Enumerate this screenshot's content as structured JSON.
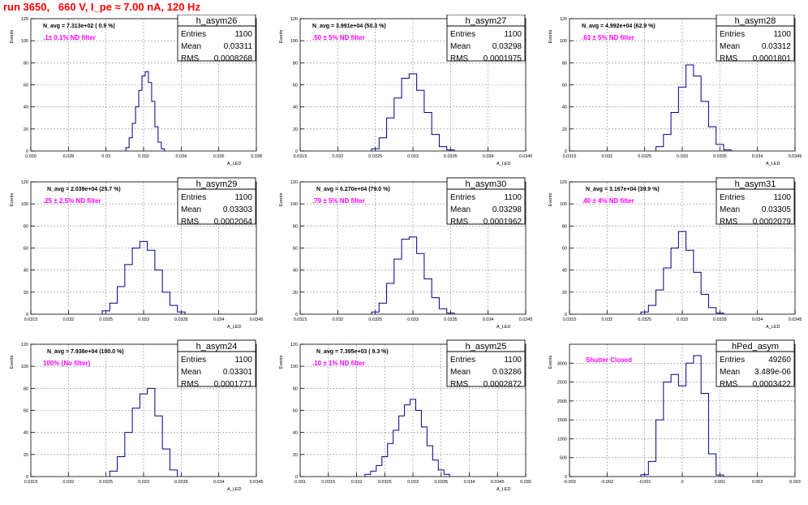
{
  "title": "run 3650,   660 V, I_pe ≈ 7.00 nA, 120 Hz",
  "stat_labels": {
    "entries": "Entries",
    "mean": "Mean",
    "rms": "RMS"
  },
  "colors": {
    "histogram": "#000080",
    "label": "#ff00ff",
    "title": "#ff0000"
  },
  "chart_data": [
    {
      "type": "histogram",
      "name": "h_asym26",
      "entries": "1100",
      "mean": "0.03311",
      "rms": "0.0008268",
      "navg": "N_avg = 7.313e+02 ( 0.9 %)",
      "filter": ".1± 0.1% ND filter",
      "ylabel": "Events",
      "xlabel": "A_LED",
      "xlim": [
        0.026,
        0.04
      ],
      "ylim": [
        0,
        120
      ],
      "xticks": [
        "0.026",
        "0.028",
        "0.03",
        "0.032",
        "0.034",
        "0.036",
        "0.038"
      ],
      "yticks": [
        "0",
        "20",
        "40",
        "60",
        "80",
        "100",
        "120"
      ],
      "x": [
        0.032,
        0.0322,
        0.0324,
        0.0326,
        0.0328,
        0.033,
        0.0332,
        0.0334,
        0.0336,
        0.0338,
        0.034,
        0.0342
      ],
      "values": [
        3,
        12,
        25,
        40,
        55,
        68,
        72,
        62,
        45,
        22,
        8,
        2
      ]
    },
    {
      "type": "histogram",
      "name": "h_asym27",
      "entries": "1100",
      "mean": "0.03298",
      "rms": "0.0001975",
      "navg": "N_avg = 3.991e+04 (50.3 %)",
      "filter": ".50 ± 5% ND filter",
      "ylabel": "Events",
      "xlabel": "A_LED",
      "xlim": [
        0.0315,
        0.0345
      ],
      "ylim": [
        0,
        120
      ],
      "xticks": [
        "0.0315",
        "0.032",
        "0.0325",
        "0.033",
        "0.0335",
        "0.034",
        "0.0345"
      ],
      "yticks": [
        "0",
        "20",
        "40",
        "60",
        "80",
        "100",
        "120"
      ],
      "x": [
        0.0325,
        0.0326,
        0.0327,
        0.0328,
        0.0329,
        0.033,
        0.0331,
        0.0332,
        0.0333,
        0.0334,
        0.0335
      ],
      "values": [
        2,
        12,
        30,
        48,
        66,
        70,
        55,
        35,
        15,
        4,
        1
      ]
    },
    {
      "type": "histogram",
      "name": "h_asym28",
      "entries": "1100",
      "mean": "0.03312",
      "rms": "0.0001801",
      "navg": "N_avg = 4.992e+04 (62.9 %)",
      "filter": ".63 ± 5% ND filter",
      "ylabel": "Events",
      "xlabel": "A_LED",
      "xlim": [
        0.0315,
        0.0345
      ],
      "ylim": [
        0,
        120
      ],
      "xticks": [
        "0.0315",
        "0.032",
        "0.0325",
        "0.033",
        "0.0335",
        "0.034",
        "0.0345"
      ],
      "yticks": [
        "0",
        "20",
        "40",
        "60",
        "80",
        "100",
        "120"
      ],
      "x": [
        0.0327,
        0.0328,
        0.0329,
        0.033,
        0.0331,
        0.0332,
        0.0333,
        0.0334,
        0.0335,
        0.0336
      ],
      "values": [
        4,
        15,
        35,
        58,
        78,
        68,
        45,
        22,
        6,
        1
      ]
    },
    {
      "type": "histogram",
      "name": "h_asym29",
      "entries": "1100",
      "mean": "0.03303",
      "rms": "0.0002064",
      "navg": "N_avg = 2.039e+04 (25.7 %)",
      "filter": ".25 ± 2.5% ND filter",
      "ylabel": "Events",
      "xlabel": "A_LED",
      "xlim": [
        0.0315,
        0.0345
      ],
      "ylim": [
        0,
        120
      ],
      "xticks": [
        "0.0315",
        "0.032",
        "0.0325",
        "0.033",
        "0.0335",
        "0.034",
        "0.0345"
      ],
      "yticks": [
        "0",
        "20",
        "40",
        "60",
        "80",
        "100",
        "120"
      ],
      "x": [
        0.0325,
        0.0326,
        0.0327,
        0.0328,
        0.0329,
        0.033,
        0.0331,
        0.0332,
        0.0333,
        0.0334,
        0.0335
      ],
      "values": [
        3,
        10,
        25,
        45,
        60,
        66,
        58,
        40,
        20,
        8,
        2
      ]
    },
    {
      "type": "histogram",
      "name": "h_asym30",
      "entries": "1100",
      "mean": "0.03298",
      "rms": "0.0001962",
      "navg": "N_avg = 6.270e+04 (79.0 %)",
      "filter": ".79 ± 5% ND filter",
      "ylabel": "Events",
      "xlabel": "A_LED",
      "xlim": [
        0.0315,
        0.0345
      ],
      "ylim": [
        0,
        120
      ],
      "xticks": [
        "0.0315",
        "0.032",
        "0.0325",
        "0.033",
        "0.0335",
        "0.034",
        "0.0345"
      ],
      "yticks": [
        "0",
        "20",
        "40",
        "60",
        "80",
        "100",
        "120"
      ],
      "x": [
        0.0325,
        0.0326,
        0.0327,
        0.0328,
        0.0329,
        0.033,
        0.0331,
        0.0332,
        0.0333,
        0.0334,
        0.0335
      ],
      "values": [
        2,
        10,
        28,
        50,
        68,
        70,
        55,
        32,
        15,
        5,
        1
      ]
    },
    {
      "type": "histogram",
      "name": "h_asym31",
      "entries": "1100",
      "mean": "0.03305",
      "rms": "0.0002079",
      "navg": "N_avg = 3.167e+04 (39.9 %)",
      "filter": ".40 ± 4% ND filter",
      "ylabel": "Events",
      "xlabel": "A_LED",
      "xlim": [
        0.0315,
        0.0345
      ],
      "ylim": [
        0,
        120
      ],
      "xticks": [
        "0.0315",
        "0.032",
        "0.0325",
        "0.033",
        "0.0335",
        "0.034",
        "0.0345"
      ],
      "yticks": [
        "0",
        "20",
        "40",
        "60",
        "80",
        "100",
        "120"
      ],
      "x": [
        0.0325,
        0.0326,
        0.0327,
        0.0328,
        0.0329,
        0.033,
        0.0331,
        0.0332,
        0.0333,
        0.0334,
        0.0335
      ],
      "values": [
        2,
        8,
        22,
        42,
        60,
        75,
        58,
        38,
        18,
        6,
        1
      ]
    },
    {
      "type": "histogram",
      "name": "h_asym24",
      "entries": "1100",
      "mean": "0.03301",
      "rms": "0.0001771",
      "navg": "N_avg = 7.938e+04 (100.0 %)",
      "filter": "100% (No filter)",
      "ylabel": "Events",
      "xlabel": "A_LED",
      "xlim": [
        0.0315,
        0.0345
      ],
      "ylim": [
        0,
        120
      ],
      "xticks": [
        "0.0315",
        "0.032",
        "0.0325",
        "0.033",
        "0.0335",
        "0.034",
        "0.0345"
      ],
      "yticks": [
        "0",
        "20",
        "40",
        "60",
        "80",
        "100",
        "120"
      ],
      "x": [
        0.0326,
        0.0327,
        0.0328,
        0.0329,
        0.033,
        0.0331,
        0.0332,
        0.0333,
        0.0334
      ],
      "values": [
        5,
        18,
        40,
        62,
        75,
        80,
        55,
        25,
        6
      ]
    },
    {
      "type": "histogram",
      "name": "h_asym25",
      "entries": "1100",
      "mean": "0.03286",
      "rms": "0.0002872",
      "navg": "N_avg = 7.395e+03 ( 9.3 %)",
      "filter": ".10 ± 1% ND filter",
      "ylabel": "Events",
      "xlabel": "A_LED",
      "xlim": [
        0.031,
        0.035
      ],
      "ylim": [
        0,
        120
      ],
      "xticks": [
        "0.031",
        "0.0315",
        "0.032",
        "0.0325",
        "0.033",
        "0.0335",
        "0.034",
        "0.0345",
        "0.035"
      ],
      "yticks": [
        "0",
        "20",
        "40",
        "60",
        "80",
        "100",
        "120"
      ],
      "x": [
        0.0322,
        0.0323,
        0.0324,
        0.0325,
        0.0326,
        0.0327,
        0.0328,
        0.0329,
        0.033,
        0.0331,
        0.0332,
        0.0333,
        0.0334,
        0.0335,
        0.0336
      ],
      "values": [
        2,
        5,
        10,
        18,
        30,
        42,
        55,
        65,
        70,
        60,
        45,
        28,
        15,
        6,
        2
      ]
    },
    {
      "type": "histogram",
      "name": "hPed_asym",
      "entries": "49260",
      "mean": "3.489e-06",
      "rms": "0.0003422",
      "navg": "",
      "filter": "Shutter Closed",
      "ylabel": "Events",
      "xlabel": "",
      "xlim": [
        -0.003,
        0.003
      ],
      "ylim": [
        0,
        3500
      ],
      "xticks": [
        "-0.003",
        "-0.002",
        "-0.001",
        "0",
        "0.001",
        "0.002",
        "0.003"
      ],
      "yticks": [
        "0",
        "500",
        "1000",
        "1500",
        "2000",
        "2500",
        "3000"
      ],
      "x": [
        -0.001,
        -0.0008,
        -0.0006,
        -0.0004,
        -0.0002,
        0.0,
        0.0002,
        0.0004,
        0.0006,
        0.0008,
        0.001
      ],
      "values": [
        50,
        400,
        1500,
        2500,
        2700,
        2400,
        3000,
        3200,
        2200,
        600,
        40
      ]
    }
  ]
}
